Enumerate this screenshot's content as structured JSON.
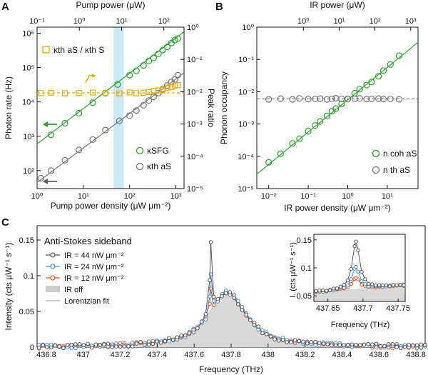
{
  "panels": [
    "A",
    "B",
    "C"
  ],
  "chart_data": [
    {
      "panel": "A",
      "type": "scatter",
      "xscale": "log",
      "x2scale": "log",
      "yscale": "log",
      "y2scale": "log",
      "xlabel": "Pump power density (μW μm⁻²)",
      "x2label": "Pump power (μW)",
      "ylabel": "Photon rate (Hz)",
      "y2label": "Peak ratio",
      "xlim": [
        1,
        1500
      ],
      "ylim": [
        30,
        1500000
      ],
      "x2lim": [
        0.1,
        300
      ],
      "y2lim": [
        1e-05,
        1
      ],
      "xticks": [
        "10⁰",
        "10¹",
        "10²",
        "10³"
      ],
      "x2ticks": [
        "10⁻¹",
        "10⁰",
        "10¹",
        "10²"
      ],
      "yticks": [
        "10²",
        "10³",
        "10⁴",
        "10⁵",
        "10⁶"
      ],
      "y2ticks": [
        "10⁻⁵",
        "10⁻⁴",
        "10⁻³",
        "10⁻²",
        "10⁻¹",
        "10⁰"
      ],
      "highlight_band_x": [
        45,
        75
      ],
      "series": [
        {
          "name": "κSFG",
          "axis": "left",
          "color": "#2ca02c",
          "x": [
            2,
            4,
            8,
            16,
            30,
            55,
            100,
            140,
            200,
            260,
            330,
            420,
            520,
            650,
            800,
            950,
            1100
          ],
          "y": [
            1100,
            2400,
            4700,
            9500,
            18000,
            32000,
            60000,
            80000,
            115000,
            155000,
            190000,
            250000,
            320000,
            400000,
            520000,
            630000,
            700000
          ],
          "fit": [
            [
              1,
              600
            ],
            [
              1500,
              1100000
            ]
          ]
        },
        {
          "name": "κth aS",
          "axis": "left",
          "color": "#777777",
          "x": [
            1.2,
            2,
            4,
            8,
            16,
            30,
            60,
            100,
            140,
            200,
            260,
            330,
            420,
            520,
            650,
            800,
            950,
            1100
          ],
          "y": [
            60,
            100,
            200,
            400,
            800,
            1500,
            2800,
            4000,
            5600,
            8000,
            11000,
            14000,
            18000,
            24000,
            30000,
            38000,
            45000,
            60000
          ],
          "fit": [
            [
              1,
              45
            ],
            [
              1500,
              70000
            ]
          ]
        },
        {
          "name": "κth aS / κth S",
          "axis": "right",
          "color": "#e6ac00",
          "x": [
            1.2,
            2,
            4,
            8,
            16,
            30,
            60,
            100,
            140,
            200,
            260,
            330,
            420,
            520,
            650,
            800,
            950,
            1100
          ],
          "y": [
            0.0091,
            0.0093,
            0.009,
            0.0092,
            0.0094,
            0.0091,
            0.0089,
            0.0095,
            0.009,
            0.0093,
            0.0098,
            0.0105,
            0.011,
            0.0115,
            0.013,
            0.014,
            0.0155,
            0.016
          ],
          "fit": [
            [
              1,
              0.0092
            ],
            [
              1500,
              0.0092
            ]
          ]
        }
      ]
    },
    {
      "panel": "B",
      "type": "scatter",
      "xscale": "log",
      "x2scale": "log",
      "yscale": "log",
      "xlabel": "IR power density (μW μm⁻²)",
      "x2label": "IR power (μW)",
      "ylabel": "Phonon occupancy",
      "xlim": [
        0.005,
        60
      ],
      "ylim": [
        1e-05,
        1
      ],
      "x2lim": [
        0.05,
        1600
      ],
      "xticks": [
        "10⁻²",
        "10⁻¹",
        "10⁰",
        "10¹"
      ],
      "x2ticks": [
        "10⁰",
        "10¹",
        "10²",
        "10³"
      ],
      "yticks": [
        "10⁻⁵",
        "10⁻⁴",
        "10⁻³",
        "10⁻²",
        "10⁻¹",
        "10⁰"
      ],
      "series": [
        {
          "name": "n coh aS",
          "color": "#2ca02c",
          "x": [
            0.01,
            0.02,
            0.04,
            0.06,
            0.1,
            0.15,
            0.2,
            0.3,
            0.4,
            0.5,
            0.7,
            1,
            1.5,
            2,
            3,
            4,
            6,
            8,
            12,
            20
          ],
          "y": [
            6.5e-05,
            0.00012,
            0.00025,
            0.00035,
            0.0006,
            0.0009,
            0.0012,
            0.0018,
            0.0025,
            0.003,
            0.0042,
            0.006,
            0.009,
            0.012,
            0.016,
            0.02,
            0.03,
            0.045,
            0.07,
            0.13
          ],
          "fit": [
            [
              0.005,
              2.8e-05
            ],
            [
              60,
              0.34
            ]
          ]
        },
        {
          "name": "n th aS",
          "color": "#777777",
          "x": [
            0.01,
            0.02,
            0.04,
            0.06,
            0.1,
            0.15,
            0.2,
            0.3,
            0.4,
            0.5,
            0.7,
            1,
            1.5,
            2,
            3,
            4,
            6,
            8,
            12,
            20
          ],
          "y": [
            0.0058,
            0.0061,
            0.0058,
            0.0062,
            0.0059,
            0.006,
            0.0061,
            0.0058,
            0.006,
            0.0063,
            0.006,
            0.0059,
            0.006,
            0.0062,
            0.0059,
            0.006,
            0.0061,
            0.0059,
            0.006,
            0.0058
          ],
          "fit": [
            [
              0.005,
              0.006
            ],
            [
              60,
              0.006
            ]
          ]
        }
      ]
    },
    {
      "panel": "C",
      "type": "line",
      "title": "Anti-Stokes sideband",
      "xlabel": "Frequency (THz)",
      "ylabel": "Intensity (cts μW⁻¹ s⁻¹)",
      "xlim": [
        436.75,
        438.85
      ],
      "ylim": [
        0,
        0.17
      ],
      "xticks": [
        "436.8",
        "437",
        "437.2",
        "437.4",
        "437.6",
        "437.8",
        "438",
        "438.2",
        "438.4",
        "438.6",
        "438.8"
      ],
      "yticks": [
        "0",
        "0.05",
        "0.1",
        "0.15"
      ],
      "lorentz": {
        "center": 437.78,
        "hwhm": 0.12,
        "amplitude": 0.077,
        "offset": 0.0
      },
      "sharp_peak": {
        "center": 437.69,
        "hwhm": 0.006
      },
      "series": [
        {
          "name": "IR = 44 nW μm⁻²",
          "color": "#555555",
          "peak": 0.147
        },
        {
          "name": "IR = 24 nW μm⁻²",
          "color": "#4a90d9",
          "peak": 0.102
        },
        {
          "name": "IR = 12 nW μm⁻²",
          "color": "#e8501c",
          "peak": 0.082
        },
        {
          "name": "IR off",
          "color": "#cccccc",
          "peak": 0.077
        },
        {
          "name": "Lorentzian fit",
          "color": "#bbbbbb"
        }
      ],
      "inset": {
        "xlabel": "Frequency (THz)",
        "ylabel": "I. (cts μW⁻¹ s⁻¹)",
        "xlim": [
          437.63,
          437.76
        ],
        "ylim": [
          0.04,
          0.16
        ],
        "xticks": [
          "437.65",
          "437.7",
          "437.75"
        ],
        "yticks": [
          "0.05",
          "0.1",
          "0.15"
        ]
      }
    }
  ]
}
